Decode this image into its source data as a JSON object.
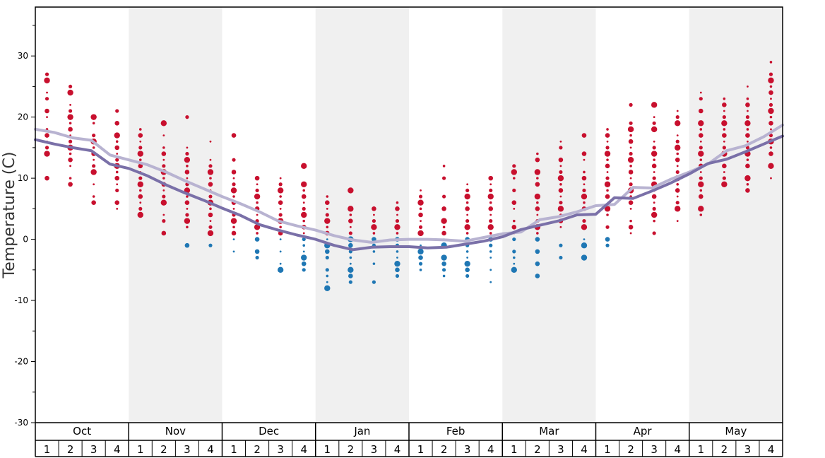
{
  "chart_data": {
    "type": "scatter",
    "ylabel": "Temperature (C)",
    "ylim": [
      -30,
      38
    ],
    "yticks": [
      -30,
      -20,
      -10,
      0,
      10,
      20,
      30
    ],
    "grid": false,
    "months": [
      "Oct",
      "Nov",
      "Dec",
      "Jan",
      "Feb",
      "Mar",
      "Apr",
      "May"
    ],
    "weeks": [
      "1",
      "2",
      "3",
      "4"
    ],
    "colors": {
      "warm_dots": "#c8102e",
      "cold_dots": "#1f77b4",
      "upper_line": "#b8b3d1",
      "lower_line": "#7a70a8",
      "shaded_month_band": "#f0f0f0"
    },
    "series": [
      {
        "values": [
          18.0,
          17.5,
          16.6,
          16.2,
          13.8,
          13.0,
          12.2,
          11.0,
          9.6,
          8.3,
          7.0,
          5.8,
          4.5,
          3.0,
          2.2,
          1.5,
          0.6,
          -0.1,
          -0.5,
          -0.1,
          0.0,
          0.0,
          -0.1,
          -0.3,
          0.3,
          0.9,
          1.2,
          3.2,
          3.7,
          4.5,
          5.5,
          5.7,
          8.5,
          8.4,
          9.8,
          11.0,
          12.3,
          14.5,
          15.3,
          16.8,
          18.7
        ]
      },
      {
        "values": [
          16.3,
          15.6,
          15.0,
          14.5,
          12.3,
          11.6,
          10.4,
          8.9,
          7.6,
          6.4,
          5.1,
          3.9,
          2.4,
          1.5,
          0.7,
          0.0,
          -1.0,
          -1.7,
          -1.3,
          -1.2,
          -1.2,
          -1.4,
          -1.3,
          -0.8,
          -0.3,
          0.4,
          1.6,
          2.3,
          3.0,
          4.0,
          4.1,
          6.8,
          6.7,
          7.9,
          9.2,
          10.7,
          12.4,
          13.1,
          14.3,
          15.6,
          16.9
        ]
      }
    ],
    "observations": [
      {
        "week": "Oct 1",
        "temps": [
          27,
          26,
          24,
          23,
          21,
          20,
          18,
          17,
          16,
          15,
          14,
          10
        ]
      },
      {
        "week": "Oct 2",
        "temps": [
          25,
          24,
          22,
          21,
          20,
          19,
          18,
          17,
          16,
          15,
          14,
          13,
          12,
          10,
          9
        ]
      },
      {
        "week": "Oct 3",
        "temps": [
          20,
          19,
          17,
          16,
          15,
          14,
          13,
          12,
          11,
          9,
          7,
          6
        ]
      },
      {
        "week": "Oct 4",
        "temps": [
          21,
          19,
          17,
          16,
          15,
          14,
          13,
          12,
          11,
          10,
          9,
          8,
          6,
          5
        ]
      },
      {
        "week": "Nov 1",
        "temps": [
          18,
          17,
          16,
          15,
          14,
          13,
          12,
          11,
          10,
          9,
          8,
          7,
          6,
          5,
          4
        ]
      },
      {
        "week": "Nov 2",
        "temps": [
          19,
          17,
          15,
          14,
          13,
          12,
          11,
          10,
          9,
          8,
          7,
          6,
          4,
          3,
          1
        ]
      },
      {
        "week": "Nov 3",
        "temps": [
          20,
          15,
          14,
          13,
          12,
          11,
          10,
          9,
          8,
          7,
          6,
          5,
          4,
          3,
          2,
          -1
        ]
      },
      {
        "week": "Nov 4",
        "temps": [
          16,
          13,
          12,
          11,
          10,
          9,
          8,
          7,
          6,
          5,
          4,
          3,
          2,
          1,
          -1
        ]
      },
      {
        "week": "Dec 1",
        "temps": [
          17,
          13,
          11,
          10,
          9,
          8,
          7,
          6,
          5,
          4,
          3,
          2,
          1,
          0,
          -2
        ]
      },
      {
        "week": "Dec 2",
        "temps": [
          10,
          9,
          8,
          7,
          6,
          5,
          4,
          3,
          2,
          1,
          0,
          -2,
          -3
        ]
      },
      {
        "week": "Dec 3",
        "temps": [
          10,
          9,
          8,
          7,
          6,
          5,
          4,
          3,
          2,
          1,
          0,
          -2,
          -4,
          -5
        ]
      },
      {
        "week": "Dec 4",
        "temps": [
          12,
          9,
          8,
          7,
          6,
          5,
          4,
          3,
          2,
          1,
          0,
          -1,
          -2,
          -3,
          -4,
          -5
        ]
      },
      {
        "week": "Jan 1",
        "temps": [
          7,
          6,
          5,
          4,
          3,
          2,
          1,
          0,
          -1,
          -2,
          -3,
          -5,
          -6,
          -7,
          -8
        ]
      },
      {
        "week": "Jan 2",
        "temps": [
          8,
          5,
          4,
          3,
          2,
          1,
          0,
          -1,
          -2,
          -3,
          -4,
          -5,
          -6,
          -7
        ]
      },
      {
        "week": "Jan 3",
        "temps": [
          5,
          4,
          3,
          2,
          1,
          0,
          -1,
          -2,
          -4,
          -7
        ]
      },
      {
        "week": "Jan 4",
        "temps": [
          6,
          5,
          4,
          3,
          2,
          1,
          0,
          -1,
          -2,
          -3,
          -4,
          -5,
          -6
        ]
      },
      {
        "week": "Feb 1",
        "temps": [
          8,
          7,
          6,
          5,
          4,
          3,
          2,
          1,
          0,
          -1,
          -2,
          -3,
          -4,
          -5
        ]
      },
      {
        "week": "Feb 2",
        "temps": [
          12,
          10,
          7,
          5,
          3,
          2,
          1,
          0,
          -1,
          -3,
          -4,
          -5,
          -6
        ]
      },
      {
        "week": "Feb 3",
        "temps": [
          9,
          8,
          7,
          6,
          5,
          4,
          3,
          2,
          1,
          0,
          -1,
          -2,
          -3,
          -4,
          -5,
          -6
        ]
      },
      {
        "week": "Feb 4",
        "temps": [
          10,
          9,
          8,
          7,
          6,
          5,
          4,
          3,
          2,
          1,
          0,
          -1,
          -2,
          -3,
          -5,
          -7
        ]
      },
      {
        "week": "Mar 1",
        "temps": [
          12,
          11,
          10,
          8,
          6,
          5,
          3,
          2,
          1,
          0,
          -2,
          -3,
          -4,
          -5
        ]
      },
      {
        "week": "Mar 2",
        "temps": [
          14,
          13,
          11,
          10,
          9,
          7,
          6,
          5,
          4,
          3,
          2,
          1,
          0,
          -2,
          -4,
          -6
        ]
      },
      {
        "week": "Mar 3",
        "temps": [
          16,
          15,
          13,
          12,
          11,
          10,
          9,
          8,
          7,
          6,
          5,
          4,
          3,
          2,
          -1,
          -3
        ]
      },
      {
        "week": "Mar 4",
        "temps": [
          17,
          14,
          13,
          11,
          10,
          9,
          8,
          7,
          6,
          5,
          4,
          3,
          2,
          0,
          -1,
          -3
        ]
      },
      {
        "week": "Apr 1",
        "temps": [
          18,
          17,
          16,
          15,
          14,
          13,
          12,
          11,
          10,
          9,
          8,
          7,
          5,
          4,
          2,
          0,
          -1
        ]
      },
      {
        "week": "Apr 2",
        "temps": [
          22,
          19,
          18,
          17,
          16,
          15,
          14,
          13,
          12,
          11,
          10,
          9,
          8,
          7,
          6,
          5,
          3,
          2,
          1
        ]
      },
      {
        "week": "Apr 3",
        "temps": [
          22,
          20,
          19,
          18,
          16,
          15,
          14,
          13,
          12,
          11,
          10,
          9,
          8,
          7,
          6,
          5,
          4,
          3,
          1
        ]
      },
      {
        "week": "Apr 4",
        "temps": [
          21,
          20,
          19,
          17,
          16,
          15,
          14,
          13,
          12,
          11,
          10,
          9,
          8,
          7,
          6,
          5,
          3
        ]
      },
      {
        "week": "May 1",
        "temps": [
          24,
          23,
          21,
          19,
          18,
          17,
          16,
          15,
          14,
          13,
          12,
          11,
          10,
          9,
          8,
          7,
          5,
          4
        ]
      },
      {
        "week": "May 2",
        "temps": [
          23,
          22,
          21,
          20,
          19,
          18,
          17,
          16,
          15,
          14,
          13,
          12,
          11,
          10,
          9
        ]
      },
      {
        "week": "May 3",
        "temps": [
          25,
          23,
          22,
          21,
          20,
          19,
          18,
          17,
          16,
          15,
          14,
          13,
          12,
          10,
          9,
          8
        ]
      },
      {
        "week": "May 4",
        "temps": [
          29,
          27,
          26,
          25,
          24,
          23,
          22,
          21,
          20,
          19,
          18,
          17,
          16,
          15,
          14,
          12,
          10
        ]
      }
    ]
  }
}
